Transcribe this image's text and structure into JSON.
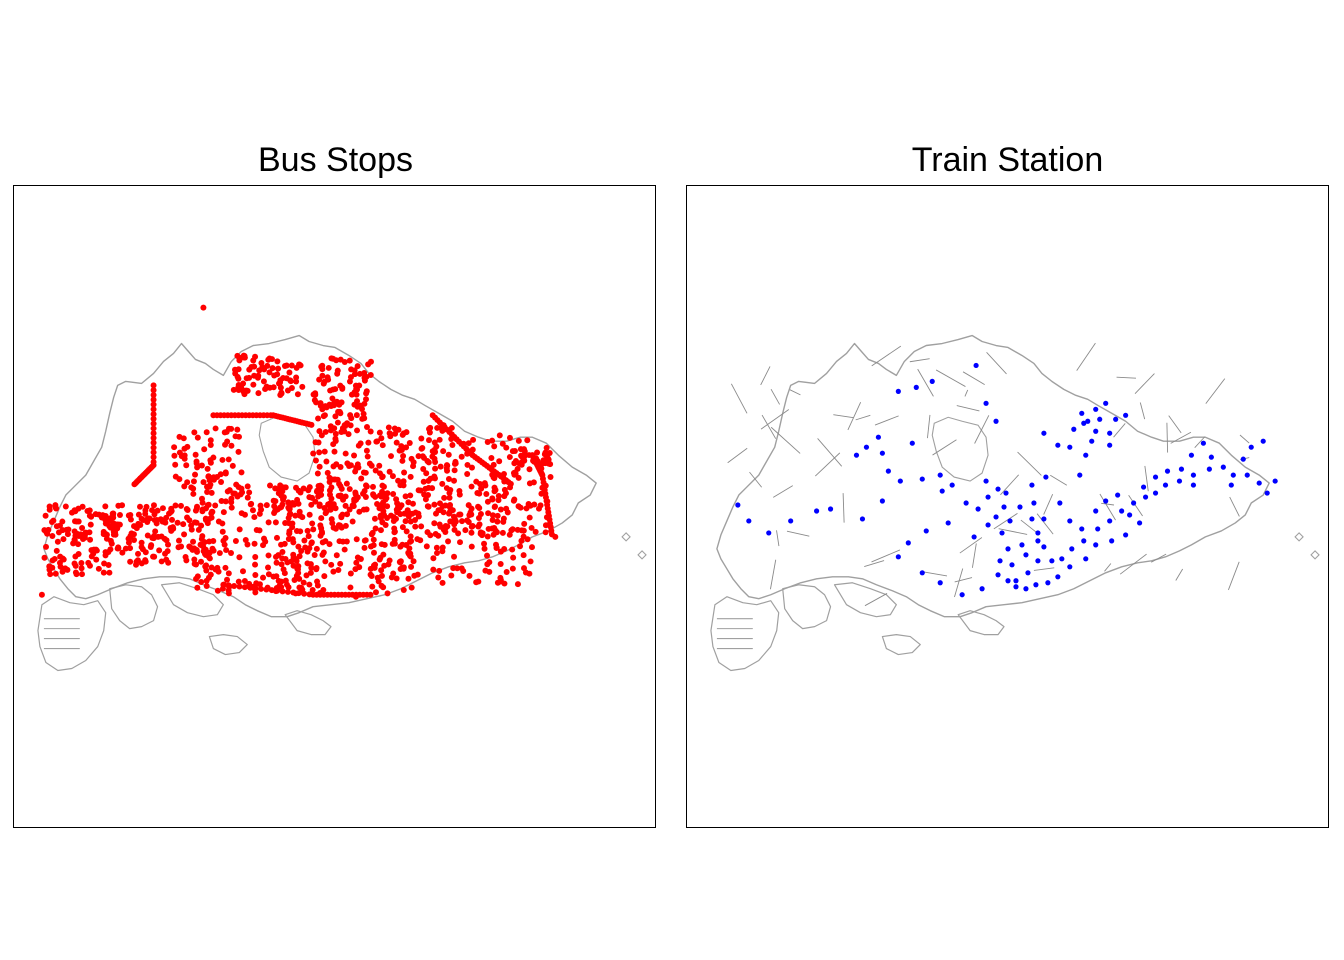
{
  "panels": [
    {
      "title": "Bus Stops",
      "point_color": "#ff0000",
      "boundary_color": "#a0a0a0",
      "subzone_lines": false,
      "dot_radius": 3
    },
    {
      "title": "Train Station",
      "point_color": "#0000ff",
      "boundary_color": "#a0a0a0",
      "subzone_lines": true,
      "dot_radius": 2.6
    }
  ]
}
